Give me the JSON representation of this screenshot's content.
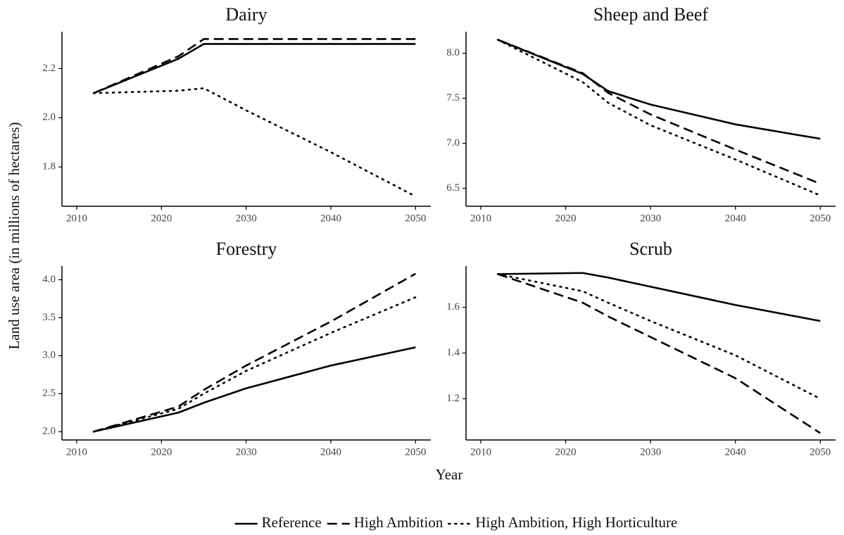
{
  "chart_data": [
    {
      "type": "line",
      "title": "Dairy",
      "x": [
        2012,
        2022,
        2025,
        2030,
        2040,
        2050
      ],
      "series": [
        {
          "name": "Reference",
          "color": "#000000",
          "dash": "solid",
          "values": [
            2.1,
            2.24,
            2.3,
            2.3,
            2.3,
            2.3
          ]
        },
        {
          "name": "High Ambition",
          "color": "#000000",
          "dash": "dashed",
          "values": [
            2.1,
            2.25,
            2.32,
            2.32,
            2.32,
            2.32
          ]
        },
        {
          "name": "High Ambition, High Horticulture",
          "color": "#000000",
          "dash": "dotted",
          "values": [
            2.1,
            2.11,
            2.12,
            2.03,
            1.86,
            1.68
          ]
        }
      ],
      "xlim": [
        2008.25,
        2051.8
      ],
      "ylim": [
        1.64,
        2.35
      ],
      "xticks": [
        2010,
        2020,
        2030,
        2040,
        2050
      ],
      "yticks": [
        {
          "value": 1.8,
          "label": "1.8"
        },
        {
          "value": 2.0,
          "label": "2.0"
        },
        {
          "value": 2.2,
          "label": "2.2"
        }
      ]
    },
    {
      "type": "line",
      "title": "Sheep and Beef",
      "x": [
        2012,
        2022,
        2025,
        2030,
        2040,
        2050
      ],
      "series": [
        {
          "name": "Reference",
          "color": "#000000",
          "dash": "solid",
          "values": [
            8.15,
            7.77,
            7.58,
            7.43,
            7.21,
            7.05
          ]
        },
        {
          "name": "High Ambition",
          "color": "#000000",
          "dash": "dashed",
          "values": [
            8.15,
            7.78,
            7.56,
            7.32,
            6.93,
            6.55
          ]
        },
        {
          "name": "High Ambition, High Horticulture",
          "color": "#000000",
          "dash": "dotted",
          "values": [
            8.15,
            7.68,
            7.45,
            7.2,
            6.82,
            6.42
          ]
        }
      ],
      "xlim": [
        2008.25,
        2051.8
      ],
      "ylim": [
        6.3,
        8.24
      ],
      "xticks": [
        2010,
        2020,
        2030,
        2040,
        2050
      ],
      "yticks": [
        6.5,
        {
          "value": 7.0,
          "label": "7.0"
        },
        7.5,
        {
          "value": 8.0,
          "label": "8.0"
        }
      ]
    },
    {
      "type": "line",
      "title": "Forestry",
      "x": [
        2012,
        2022,
        2025,
        2030,
        2040,
        2050
      ],
      "series": [
        {
          "name": "Reference",
          "color": "#000000",
          "dash": "solid",
          "values": [
            2.0,
            2.25,
            2.38,
            2.57,
            2.87,
            3.11
          ]
        },
        {
          "name": "High Ambition",
          "color": "#000000",
          "dash": "dashed",
          "values": [
            2.0,
            2.33,
            2.55,
            2.87,
            3.45,
            4.08
          ]
        },
        {
          "name": "High Ambition, High Horticulture",
          "color": "#000000",
          "dash": "dotted",
          "values": [
            2.0,
            2.3,
            2.5,
            2.8,
            3.3,
            3.77
          ]
        }
      ],
      "xlim": [
        2008.25,
        2051.8
      ],
      "ylim": [
        1.89,
        4.18
      ],
      "xticks": [
        2010,
        2020,
        2030,
        2040,
        2050
      ],
      "yticks": [
        {
          "value": 2.0,
          "label": "2.0"
        },
        2.5,
        {
          "value": 3.0,
          "label": "3.0"
        },
        3.5,
        {
          "value": 4.0,
          "label": "4.0"
        }
      ]
    },
    {
      "type": "line",
      "title": "Scrub",
      "x": [
        2012,
        2022,
        2025,
        2030,
        2040,
        2050
      ],
      "series": [
        {
          "name": "Reference",
          "color": "#000000",
          "dash": "solid",
          "values": [
            1.745,
            1.75,
            1.73,
            1.69,
            1.61,
            1.54
          ]
        },
        {
          "name": "High Ambition",
          "color": "#000000",
          "dash": "dashed",
          "values": [
            1.745,
            1.62,
            1.56,
            1.47,
            1.29,
            1.05
          ]
        },
        {
          "name": "High Ambition, High Horticulture",
          "color": "#000000",
          "dash": "dotted",
          "values": [
            1.745,
            1.67,
            1.62,
            1.54,
            1.39,
            1.2
          ]
        }
      ],
      "xlim": [
        2008.25,
        2051.8
      ],
      "ylim": [
        1.02,
        1.78
      ],
      "xticks": [
        2010,
        2020,
        2030,
        2040,
        2050
      ],
      "yticks": [
        {
          "value": 1.2,
          "label": "1.2"
        },
        {
          "value": 1.4,
          "label": "1.4"
        },
        {
          "value": 1.6,
          "label": "1.6"
        }
      ]
    }
  ],
  "xlabel": "Year",
  "ylabel": "Land use area (in millions of hectares)"
}
